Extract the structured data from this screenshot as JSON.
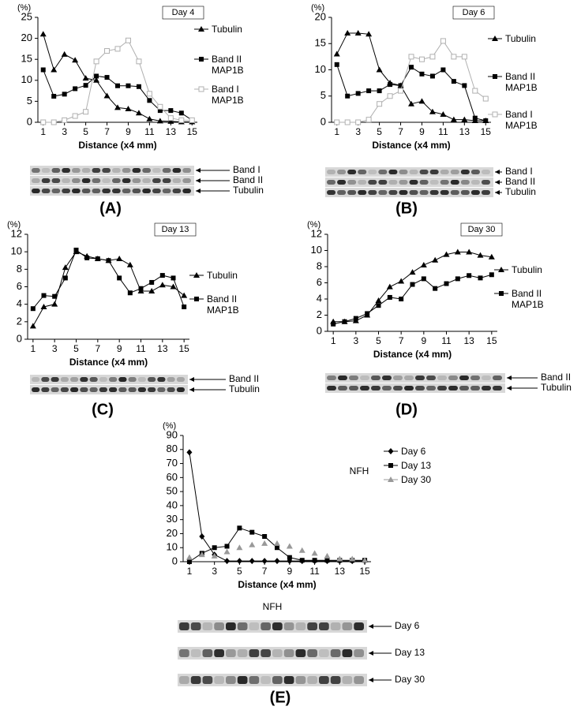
{
  "chart_data": [
    {
      "type": "line",
      "panel": "(A)",
      "y_label": "(%)",
      "x_label": "Distance (x4 mm)",
      "annotation": "Day 4",
      "x": [
        1,
        2,
        3,
        4,
        5,
        6,
        7,
        8,
        9,
        10,
        11,
        12,
        13,
        14,
        15
      ],
      "xlim": [
        0.5,
        15.5
      ],
      "xticks": [
        1,
        3,
        5,
        7,
        9,
        11,
        13,
        15
      ],
      "ylim": [
        0,
        25
      ],
      "yticks": [
        0,
        5,
        10,
        15,
        20,
        25
      ],
      "series": [
        {
          "name": "Tubulin",
          "color": "#000000",
          "marker": "triangle",
          "values": [
            21,
            12.5,
            16.2,
            14.8,
            10.5,
            10,
            6.3,
            3.5,
            3.2,
            2.2,
            0.8,
            0.3,
            0.2,
            0.1,
            0.1
          ]
        },
        {
          "name": "Band II MAP1B",
          "color": "#000000",
          "marker": "square",
          "values": [
            12.5,
            6.2,
            6.7,
            8,
            8.8,
            11,
            10.7,
            8.7,
            8.7,
            8.5,
            5.2,
            2.8,
            2.8,
            2.2,
            0.5
          ]
        },
        {
          "name": "Band I MAP1B",
          "color": "#b0b0b0",
          "marker": "open-square",
          "values": [
            0,
            0,
            0.5,
            1.5,
            2.5,
            14.5,
            17,
            17.5,
            19.5,
            14.5,
            6.8,
            3.7,
            1,
            0.5,
            0.5
          ]
        }
      ],
      "blot_labels": [
        "Band I",
        "Band II",
        "Tubulin"
      ]
    },
    {
      "type": "line",
      "panel": "(B)",
      "y_label": "(%)",
      "x_label": "Distance (x4 mm)",
      "annotation": "Day 6",
      "x": [
        1,
        2,
        3,
        4,
        5,
        6,
        7,
        8,
        9,
        10,
        11,
        12,
        13,
        14,
        15
      ],
      "xlim": [
        0.5,
        15.5
      ],
      "xticks": [
        1,
        3,
        5,
        7,
        9,
        11,
        13,
        15
      ],
      "ylim": [
        0,
        20
      ],
      "yticks": [
        0,
        5,
        10,
        15,
        20
      ],
      "series": [
        {
          "name": "Tubulin",
          "color": "#000000",
          "marker": "triangle",
          "values": [
            13,
            17,
            17,
            16.8,
            10,
            7.5,
            7,
            3.5,
            4,
            2,
            1.5,
            0.5,
            0.5,
            0.3,
            0.3
          ]
        },
        {
          "name": "Band II MAP1B",
          "color": "#000000",
          "marker": "square",
          "values": [
            11,
            5,
            5.5,
            6,
            6,
            7.2,
            7,
            10.5,
            9.2,
            8.8,
            10,
            7.8,
            7,
            0.8,
            0.3
          ]
        },
        {
          "name": "Band I MAP1B",
          "color": "#b0b0b0",
          "marker": "open-square",
          "values": [
            0,
            0,
            0,
            0.5,
            3.5,
            5,
            6,
            12.5,
            12,
            12.5,
            15.5,
            12.5,
            12.5,
            6,
            4.5
          ]
        }
      ],
      "blot_labels": [
        "Band I",
        "Band II",
        "Tubulin"
      ]
    },
    {
      "type": "line",
      "panel": "(C)",
      "y_label": "(%)",
      "x_label": "Distance (x4 mm)",
      "annotation": "Day 13",
      "x": [
        1,
        2,
        3,
        4,
        5,
        6,
        7,
        8,
        9,
        10,
        11,
        12,
        13,
        14,
        15
      ],
      "xlim": [
        0.5,
        15.5
      ],
      "xticks": [
        1,
        3,
        5,
        7,
        9,
        11,
        13,
        15
      ],
      "ylim": [
        0,
        12
      ],
      "yticks": [
        0,
        2,
        4,
        6,
        8,
        10,
        12
      ],
      "series": [
        {
          "name": "Tubulin",
          "color": "#000000",
          "marker": "triangle",
          "values": [
            1.5,
            3.7,
            4,
            8.2,
            10,
            9.5,
            9.2,
            9,
            9.2,
            8.5,
            5.5,
            5.5,
            6.2,
            6,
            5
          ]
        },
        {
          "name": "Band II MAP1B",
          "color": "#000000",
          "marker": "square",
          "values": [
            3.5,
            5,
            4.9,
            7,
            10.2,
            9.3,
            9.2,
            9,
            7,
            5.3,
            5.8,
            6.5,
            7.3,
            7,
            3.7
          ]
        }
      ],
      "blot_labels": [
        "Band II",
        "Tubulin"
      ]
    },
    {
      "type": "line",
      "panel": "(D)",
      "y_label": "(%)",
      "x_label": "Distance (x4 mm)",
      "annotation": "Day 30",
      "x": [
        1,
        2,
        3,
        4,
        5,
        6,
        7,
        8,
        9,
        10,
        11,
        12,
        13,
        14,
        15
      ],
      "xlim": [
        0.5,
        15.5
      ],
      "xticks": [
        1,
        3,
        5,
        7,
        9,
        11,
        13,
        15
      ],
      "ylim": [
        0,
        12
      ],
      "yticks": [
        0,
        2,
        4,
        6,
        8,
        10,
        12
      ],
      "series": [
        {
          "name": "Tubulin",
          "color": "#000000",
          "marker": "triangle",
          "values": [
            1.2,
            1.2,
            1.3,
            2,
            3.8,
            5.5,
            6.2,
            7.3,
            8.2,
            8.8,
            9.5,
            9.8,
            9.8,
            9.4,
            9.2
          ]
        },
        {
          "name": "Band II MAP1B",
          "color": "#000000",
          "marker": "square",
          "values": [
            0.9,
            1.2,
            1.6,
            2.2,
            3.2,
            4.2,
            4,
            5.8,
            6.5,
            5.3,
            5.9,
            6.5,
            6.9,
            6.6,
            7
          ]
        }
      ],
      "blot_labels": [
        "Band II",
        "Tubulin"
      ]
    },
    {
      "type": "line",
      "panel": "(E)",
      "y_label": "(%)",
      "x_label": "Distance (x4 mm)",
      "annotation": "NFH",
      "x": [
        1,
        2,
        3,
        4,
        5,
        6,
        7,
        8,
        9,
        10,
        11,
        12,
        13,
        14,
        15
      ],
      "xlim": [
        0.5,
        15.5
      ],
      "xticks": [
        1,
        3,
        5,
        7,
        9,
        11,
        13,
        15
      ],
      "ylim": [
        0,
        90
      ],
      "yticks": [
        0,
        10,
        20,
        30,
        40,
        50,
        60,
        70,
        80,
        90
      ],
      "series": [
        {
          "name": "Day 6",
          "color": "#000000",
          "marker": "diamond",
          "line": true,
          "values": [
            78,
            18,
            5,
            0.5,
            0.5,
            0.5,
            0.5,
            0.5,
            0.5,
            0.5,
            0.5,
            0.5,
            0.5,
            0.5,
            0.5
          ]
        },
        {
          "name": "Day 13",
          "color": "#000000",
          "marker": "square",
          "line": true,
          "values": [
            0,
            6,
            10,
            11,
            24,
            21,
            18,
            10,
            3,
            1,
            1,
            1,
            1,
            1,
            1
          ]
        },
        {
          "name": "Day 30",
          "color": "#999999",
          "marker": "triangle",
          "line": false,
          "values": [
            3,
            5,
            4,
            7,
            10,
            12,
            13,
            13,
            11,
            8,
            6,
            4,
            2,
            2,
            1
          ]
        }
      ],
      "blot_title": "NFH",
      "blot_labels": [
        "Day 6",
        "Day 13",
        "Day 30"
      ]
    }
  ]
}
